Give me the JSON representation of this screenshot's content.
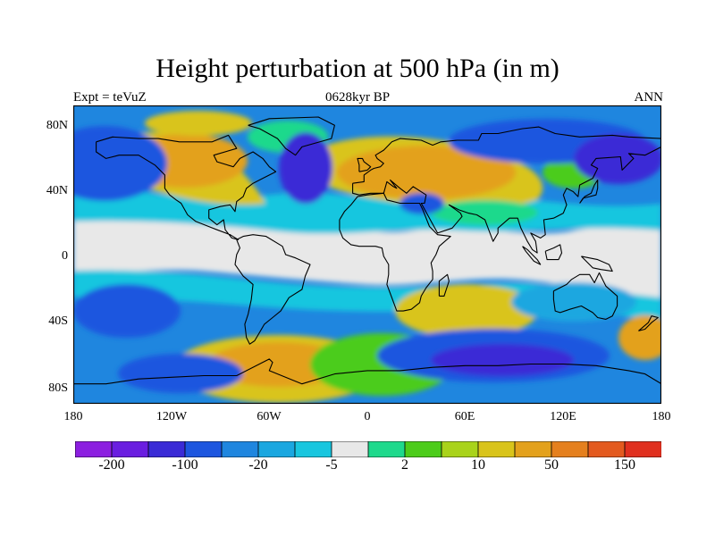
{
  "title": "Height perturbation at 500 hPa (in m)",
  "left_label": "Expt = teVuZ",
  "center_label": "0628kyr BP",
  "right_label": "ANN",
  "lat_labels": [
    "80N",
    "40N",
    "0",
    "40S",
    "80S"
  ],
  "lon_labels": [
    "180",
    "120W",
    "60W",
    "0",
    "60E",
    "120E",
    "180"
  ],
  "colorbar": {
    "colors": [
      "#8c1fe0",
      "#6a1ee0",
      "#3a2bd6",
      "#1d56df",
      "#1f86df",
      "#1aa7e0",
      "#18c6df",
      "#e8e8e8",
      "#1ed98c",
      "#4ccc1a",
      "#a9d31a",
      "#d9c41a",
      "#e3a11c",
      "#e5801e",
      "#e35a1f",
      "#e0301f"
    ],
    "labels": [
      "-200",
      "-100",
      "-20",
      "-5",
      "2",
      "10",
      "50",
      "150"
    ]
  },
  "map_colors": {
    "deep_blue": "#3a2bd6",
    "mid_blue": "#1d56df",
    "light_blue": "#1f86df",
    "cyan": "#1aa7e0",
    "aqua": "#18c6df",
    "grey": "#e8e8e8",
    "teal_green": "#1ed98c",
    "green": "#4ccc1a",
    "yellow_green": "#a9d31a",
    "yellow": "#d9c41a",
    "orange": "#e3a11c",
    "dark_orange": "#e5801e"
  }
}
